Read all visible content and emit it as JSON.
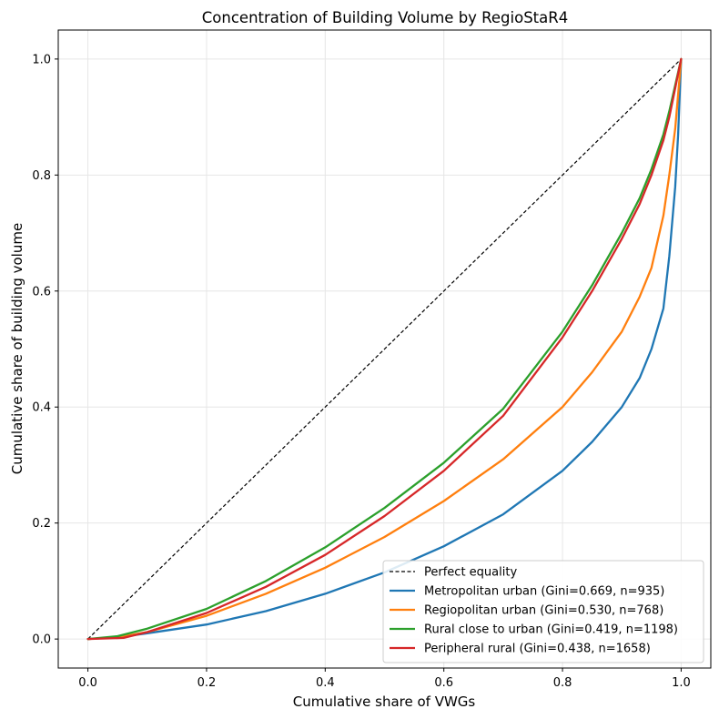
{
  "chart_data": {
    "type": "line",
    "title": "Concentration of Building Volume by RegioStaR4",
    "xlabel": "Cumulative share of VWGs",
    "ylabel": "Cumulative share of building volume",
    "xlim": [
      -0.05,
      1.05
    ],
    "ylim": [
      -0.05,
      1.05
    ],
    "xticks": [
      "0.0",
      "0.2",
      "0.4",
      "0.6",
      "0.8",
      "1.0"
    ],
    "yticks": [
      "0.0",
      "0.2",
      "0.4",
      "0.6",
      "0.8",
      "1.0"
    ],
    "grid": true,
    "legend_position": "bottom-right",
    "reference": {
      "name": "Perfect equality",
      "style": "dashed",
      "color": "#000000",
      "x": [
        0,
        1
      ],
      "y": [
        0,
        1
      ]
    },
    "series": [
      {
        "name": "Metropolitan urban (Gini=0.669, n=935)",
        "color": "#1f77b4",
        "x": [
          0,
          0.05,
          0.1,
          0.2,
          0.3,
          0.4,
          0.5,
          0.6,
          0.7,
          0.8,
          0.85,
          0.9,
          0.93,
          0.95,
          0.97,
          0.98,
          0.99,
          0.995,
          1.0
        ],
        "y": [
          0,
          0.003,
          0.01,
          0.025,
          0.048,
          0.078,
          0.115,
          0.16,
          0.215,
          0.29,
          0.34,
          0.4,
          0.45,
          0.5,
          0.57,
          0.66,
          0.78,
          0.87,
          1.0
        ]
      },
      {
        "name": "Regiopolitan urban (Gini=0.530, n=768)",
        "color": "#ff7f0e",
        "x": [
          0,
          0.05,
          0.1,
          0.2,
          0.3,
          0.4,
          0.5,
          0.6,
          0.7,
          0.8,
          0.85,
          0.9,
          0.93,
          0.95,
          0.97,
          0.98,
          0.99,
          1.0
        ],
        "y": [
          0,
          0.003,
          0.012,
          0.04,
          0.078,
          0.123,
          0.176,
          0.238,
          0.31,
          0.4,
          0.46,
          0.53,
          0.59,
          0.64,
          0.73,
          0.8,
          0.88,
          1.0
        ]
      },
      {
        "name": "Rural close to urban (Gini=0.419, n=1198)",
        "color": "#2ca02c",
        "x": [
          0,
          0.05,
          0.1,
          0.2,
          0.3,
          0.4,
          0.5,
          0.6,
          0.7,
          0.8,
          0.85,
          0.9,
          0.93,
          0.95,
          0.97,
          0.98,
          1.0
        ],
        "y": [
          0,
          0.005,
          0.018,
          0.052,
          0.1,
          0.158,
          0.226,
          0.304,
          0.397,
          0.53,
          0.61,
          0.7,
          0.76,
          0.81,
          0.87,
          0.91,
          1.0
        ]
      },
      {
        "name": "Peripheral rural (Gini=0.438, n=1658)",
        "color": "#d62728",
        "x": [
          0,
          0.06,
          0.1,
          0.2,
          0.3,
          0.4,
          0.5,
          0.6,
          0.7,
          0.8,
          0.85,
          0.9,
          0.93,
          0.95,
          0.97,
          0.98,
          1.0
        ],
        "y": [
          0,
          0.002,
          0.012,
          0.045,
          0.09,
          0.145,
          0.212,
          0.29,
          0.385,
          0.52,
          0.6,
          0.69,
          0.75,
          0.8,
          0.86,
          0.9,
          1.0
        ]
      }
    ]
  }
}
